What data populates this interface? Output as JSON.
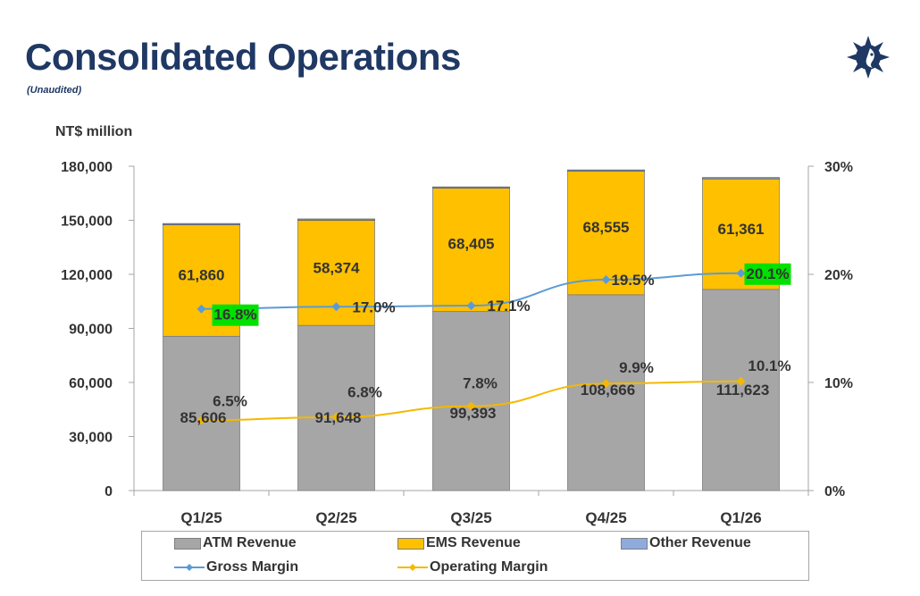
{
  "header": {
    "title": "Consolidated Operations",
    "subtitle": "(Unaudited)",
    "unit_label": "NT$ million",
    "logo_icon": "company-logo-icon"
  },
  "colors": {
    "atm": "#a6a6a6",
    "ems": "#ffc000",
    "other": "#8faadc",
    "gross_margin": "#5b9bd5",
    "operating_margin": "#f5b800",
    "highlight": "#00e100",
    "title": "#1f3864"
  },
  "legend": {
    "atm": "ATM Revenue",
    "ems": "EMS Revenue",
    "other": "Other Revenue",
    "gross": "Gross Margin",
    "operating": "Operating Margin"
  },
  "chart_data": {
    "type": "bar",
    "stacked": true,
    "categories": [
      "Q1/25",
      "Q2/25",
      "Q3/25",
      "Q4/25",
      "Q1/26"
    ],
    "y_left": {
      "ticks": [
        "0",
        "30,000",
        "60,000",
        "90,000",
        "120,000",
        "150,000",
        "180,000"
      ],
      "lim": [
        0,
        180000
      ],
      "label": "NT$ million"
    },
    "y_right": {
      "ticks": [
        "0%",
        "10%",
        "20%",
        "30%"
      ],
      "lim": [
        0,
        30
      ]
    },
    "series": [
      {
        "name": "ATM Revenue",
        "kind": "bar",
        "values": [
          85606,
          91648,
          99393,
          108666,
          111623
        ],
        "labels": [
          "85,606",
          "91,648",
          "99,393",
          "108,666",
          "111,623"
        ]
      },
      {
        "name": "EMS Revenue",
        "kind": "bar",
        "values": [
          61860,
          58374,
          68405,
          68555,
          61361
        ],
        "labels": [
          "61,860",
          "58,374",
          "68,405",
          "68,555",
          "61,361"
        ]
      },
      {
        "name": "Other Revenue",
        "kind": "bar",
        "values": [
          700,
          700,
          700,
          700,
          700
        ],
        "labels": []
      },
      {
        "name": "Gross Margin",
        "kind": "line",
        "axis": "right",
        "values": [
          16.8,
          17.0,
          17.1,
          19.5,
          20.1
        ],
        "labels": [
          "16.8%",
          "17.0%",
          "17.1%",
          "19.5%",
          "20.1%"
        ],
        "highlighted": [
          true,
          false,
          false,
          false,
          true
        ]
      },
      {
        "name": "Operating Margin",
        "kind": "line",
        "axis": "right",
        "values": [
          6.5,
          6.8,
          7.8,
          9.9,
          10.1
        ],
        "labels": [
          "6.5%",
          "6.8%",
          "7.8%",
          "9.9%",
          "10.1%"
        ]
      }
    ],
    "grid": false,
    "legend_position": "bottom"
  }
}
